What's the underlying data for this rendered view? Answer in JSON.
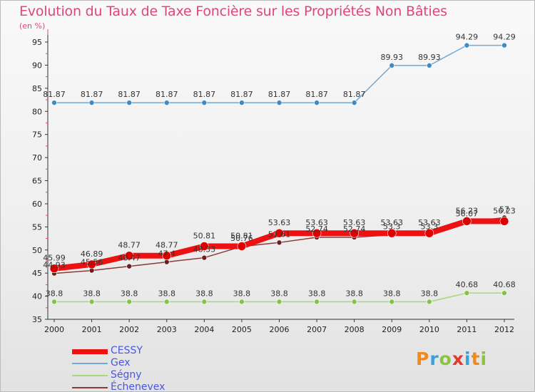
{
  "header": {
    "title": "Evolution du Taux de Taxe Foncière sur les Propriétés Non Bâties",
    "unit": "(en %)"
  },
  "chart_data": {
    "type": "line",
    "title": "Evolution du Taux de Taxe Foncière sur les Propriétés Non Bâties",
    "ylabel": "(en %)",
    "xlabel": "",
    "ylim": [
      35,
      95
    ],
    "yticks": [
      35,
      40,
      45,
      50,
      55,
      60,
      65,
      70,
      75,
      80,
      85,
      90,
      95
    ],
    "grid": false,
    "categories": [
      "2000",
      "2001",
      "2002",
      "2003",
      "2004",
      "2005",
      "2006",
      "2007",
      "2008",
      "2009",
      "2010",
      "2011",
      "2012"
    ],
    "series": [
      {
        "name": "Gex",
        "color": "#6ea9d8",
        "marker": "#3d8cc7",
        "values": [
          81.87,
          81.87,
          81.87,
          81.87,
          81.87,
          81.87,
          81.87,
          81.87,
          81.87,
          89.93,
          89.93,
          94.29,
          94.29
        ],
        "labels": [
          "81.87",
          "81.87",
          "81.87",
          "81.87",
          "81.87",
          "81.87",
          "81.87",
          "81.87",
          "81.87",
          "89.93",
          "89.93",
          "94.29",
          "94.29"
        ]
      },
      {
        "name": "Ségny",
        "color": "#a8d878",
        "marker": "#86c24a",
        "values": [
          38.8,
          38.8,
          38.8,
          38.8,
          38.8,
          38.8,
          38.8,
          38.8,
          38.8,
          38.8,
          38.8,
          40.68,
          40.68
        ],
        "labels": [
          "38.8",
          "38.8",
          "38.8",
          "38.8",
          "38.8",
          "38.8",
          "38.8",
          "38.8",
          "38.8",
          "38.8",
          "38.8",
          "40.68",
          "40.68"
        ]
      },
      {
        "name": "Échenevex",
        "color": "#8b3a3a",
        "marker": "#6b1e1e",
        "values": [
          44.93,
          45.56,
          46.47,
          47.4,
          48.33,
          50.76,
          51.61,
          52.74,
          52.74,
          53.3,
          53.3,
          56.07,
          57.0
        ],
        "labels": [
          "44.93",
          "45.56",
          "46.47",
          "47.4",
          "48.33",
          "50.76",
          "51.61",
          "52.74",
          "52.74",
          "53.3",
          "53.3",
          "56.07",
          "57"
        ]
      },
      {
        "name": "CESSY",
        "color": "#ee1111",
        "marker": "#dd0000",
        "values": [
          45.99,
          46.89,
          48.77,
          48.77,
          50.81,
          50.81,
          53.63,
          53.63,
          53.63,
          53.63,
          53.63,
          56.23,
          56.23
        ],
        "labels": [
          "45.99",
          "46.89",
          "48.77",
          "48.77",
          "50.81",
          "50.81",
          "53.63",
          "53.63",
          "53.63",
          "53.63",
          "53.63",
          "56.23",
          "56.23"
        ]
      }
    ],
    "legend": [
      "CESSY",
      "Gex",
      "Ségny",
      "Échenevex"
    ]
  },
  "legend": {
    "items": [
      {
        "label": "CESSY",
        "color": "#ee1111"
      },
      {
        "label": "Gex",
        "color": "#6ea9d8"
      },
      {
        "label": "Ségny",
        "color": "#a8d878"
      },
      {
        "label": "Échenevex",
        "color": "#8b3a3a"
      }
    ]
  },
  "logo": {
    "letters": [
      "P",
      "r",
      "o",
      "x",
      "i",
      "t",
      "i"
    ],
    "colors": [
      "#f08a1c",
      "#3aa0d8",
      "#8ac43f",
      "#e33a2c",
      "#3aa0d8",
      "#f08a1c",
      "#8ac43f"
    ]
  }
}
